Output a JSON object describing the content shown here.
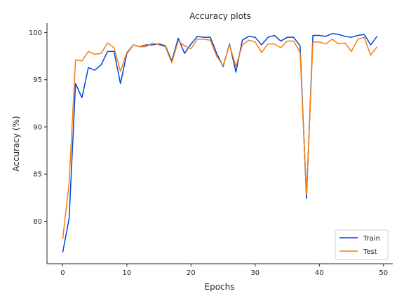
{
  "chart_data": {
    "type": "line",
    "title": "Accuracy plots",
    "xlabel": "Epochs",
    "ylabel": "Accuracy (%)",
    "xlim": [
      -2.45,
      51.45
    ],
    "ylim": [
      75.5,
      101.0
    ],
    "xticks": [
      0,
      10,
      20,
      30,
      40,
      50
    ],
    "yticks": [
      80,
      85,
      90,
      95,
      100
    ],
    "grid": false,
    "legend_position": "bottom-right",
    "x": [
      0,
      1,
      2,
      3,
      4,
      5,
      6,
      7,
      8,
      9,
      10,
      11,
      12,
      13,
      14,
      15,
      16,
      17,
      18,
      19,
      20,
      21,
      22,
      23,
      24,
      25,
      26,
      27,
      28,
      29,
      30,
      31,
      32,
      33,
      34,
      35,
      36,
      37,
      38,
      39,
      40,
      41,
      42,
      43,
      44,
      45,
      46,
      47,
      48,
      49
    ],
    "series": [
      {
        "name": "Train",
        "color": "#0043e0",
        "values": [
          76.7,
          80.3,
          94.6,
          93.1,
          96.3,
          96.0,
          96.6,
          98.0,
          98.0,
          94.6,
          97.8,
          98.7,
          98.5,
          98.7,
          98.7,
          98.8,
          98.6,
          97.0,
          99.4,
          97.8,
          98.8,
          99.6,
          99.5,
          99.5,
          97.8,
          96.4,
          98.8,
          95.8,
          99.2,
          99.6,
          99.5,
          98.7,
          99.5,
          99.7,
          99.1,
          99.5,
          99.5,
          98.6,
          82.4,
          99.7,
          99.7,
          99.6,
          99.9,
          99.8,
          99.6,
          99.5,
          99.7,
          99.8,
          98.7,
          99.6
        ]
      },
      {
        "name": "Test",
        "color": "#f47f0e",
        "values": [
          78.1,
          84.1,
          97.1,
          97.0,
          98.0,
          97.7,
          97.8,
          98.9,
          98.4,
          95.9,
          97.9,
          98.7,
          98.5,
          98.5,
          98.9,
          98.7,
          98.5,
          96.8,
          99.1,
          98.6,
          98.3,
          99.3,
          99.3,
          99.2,
          97.5,
          96.5,
          98.7,
          96.4,
          98.7,
          99.2,
          99.0,
          97.9,
          98.8,
          98.8,
          98.4,
          99.1,
          99.1,
          97.9,
          82.8,
          99.0,
          99.0,
          98.8,
          99.3,
          98.8,
          98.9,
          98.0,
          99.3,
          99.5,
          97.6,
          98.5
        ]
      }
    ]
  }
}
